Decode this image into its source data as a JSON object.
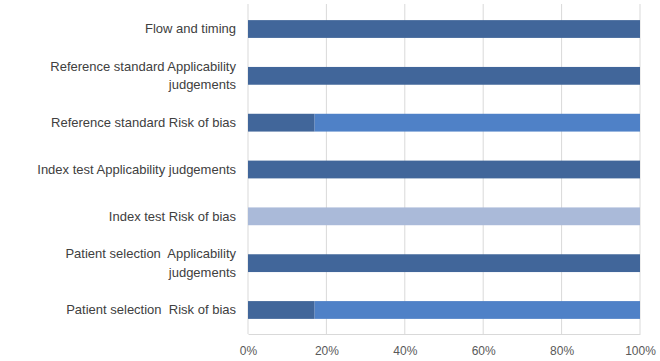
{
  "chart_data": {
    "type": "bar",
    "orientation": "horizontal",
    "stacked": true,
    "grid": true,
    "categories": [
      "Flow and timing",
      "Reference standard Applicability judgements",
      "Reference standard Risk of bias",
      "Index test Applicability judgements",
      "Index test Risk of bias",
      "Patient selection  Applicability judgements",
      "Patient selection  Risk of bias"
    ],
    "series": [
      {
        "color": "#41669a",
        "values": [
          100,
          100,
          17,
          100,
          0,
          100,
          17
        ]
      },
      {
        "color": "#4f81c7",
        "values": [
          0,
          0,
          83,
          0,
          0,
          0,
          83
        ]
      },
      {
        "color": "#aabad9",
        "values": [
          0,
          0,
          0,
          0,
          100,
          0,
          0
        ]
      }
    ],
    "xlim": [
      0,
      100
    ],
    "xticks": [
      {
        "value": 0,
        "label": "0%"
      },
      {
        "value": 20,
        "label": "20%"
      },
      {
        "value": 40,
        "label": "40%"
      },
      {
        "value": 60,
        "label": "60%"
      },
      {
        "value": 80,
        "label": "80%"
      },
      {
        "value": 100,
        "label": "100%"
      }
    ]
  }
}
